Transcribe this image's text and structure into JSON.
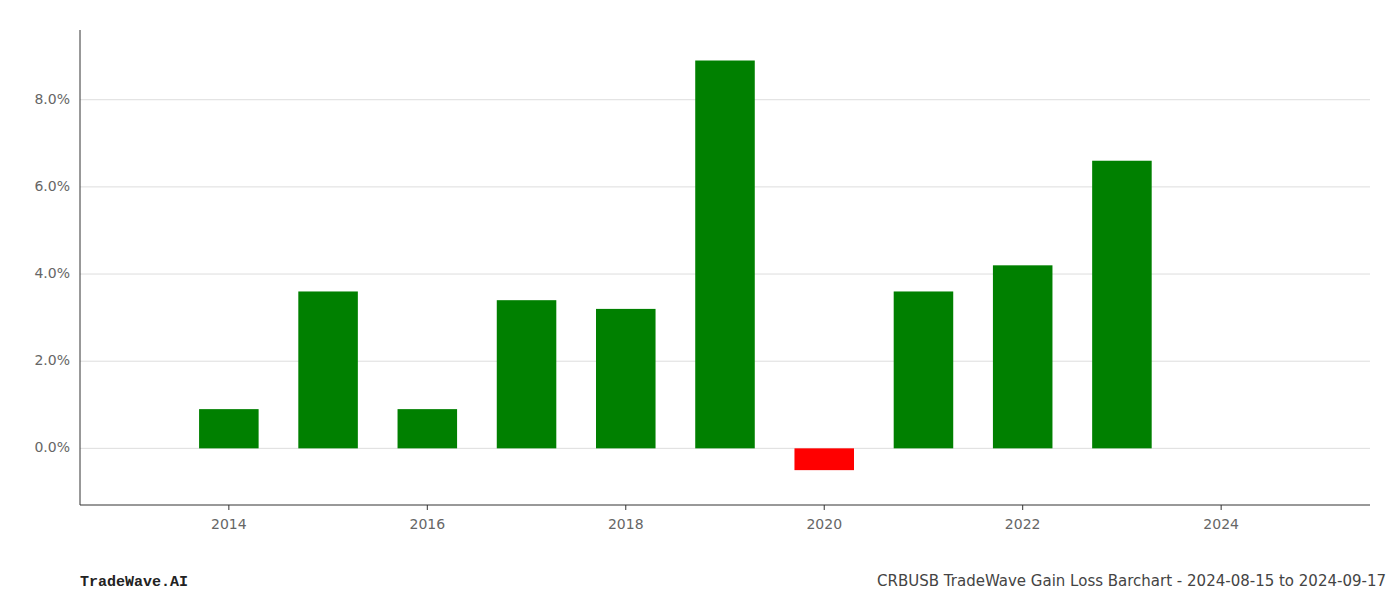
{
  "chart_data": {
    "type": "bar",
    "x": [
      2014,
      2015,
      2016,
      2017,
      2018,
      2019,
      2020,
      2021,
      2022,
      2023
    ],
    "values": [
      0.009,
      0.036,
      0.009,
      0.034,
      0.032,
      0.089,
      -0.005,
      0.036,
      0.042,
      0.066
    ],
    "colors": [
      "#008000",
      "#008000",
      "#008000",
      "#008000",
      "#008000",
      "#008000",
      "#ff0000",
      "#008000",
      "#008000",
      "#008000"
    ],
    "xlim": [
      2012.5,
      2025.5
    ],
    "xticks": [
      2014,
      2016,
      2018,
      2020,
      2022,
      2024
    ],
    "ylim": [
      -0.013,
      0.096
    ],
    "yticks": [
      {
        "value": 0.0,
        "label": "0.0%"
      },
      {
        "value": 0.02,
        "label": "2.0%"
      },
      {
        "value": 0.04,
        "label": "4.0%"
      },
      {
        "value": 0.06,
        "label": "6.0%"
      },
      {
        "value": 0.08,
        "label": "8.0%"
      }
    ],
    "grid": true,
    "annotations": [
      "TradeWave.AI",
      "CRBUSB TradeWave Gain Loss Barchart - 2024-08-15 to 2024-09-17"
    ]
  }
}
